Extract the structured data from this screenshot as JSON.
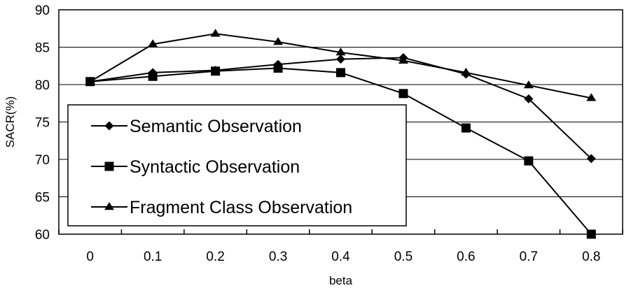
{
  "chart_data": {
    "type": "line",
    "title": "",
    "xlabel": "beta",
    "ylabel": "SACR(%)",
    "x": [
      "0",
      "0.1",
      "0.2",
      "0.3",
      "0.4",
      "0.5",
      "0.6",
      "0.7",
      "0.8"
    ],
    "yticks": [
      "60",
      "65",
      "70",
      "75",
      "80",
      "85",
      "90"
    ],
    "ylim": [
      60,
      90
    ],
    "grid": true,
    "legend_position": "lower-left inside plot",
    "series": [
      {
        "name": "Semantic Observation",
        "marker": "diamond",
        "values": [
          80.4,
          81.6,
          81.9,
          82.7,
          83.4,
          83.6,
          81.4,
          78.1,
          70.1
        ]
      },
      {
        "name": "Syntactic Observation",
        "marker": "square",
        "values": [
          80.4,
          81.1,
          81.8,
          82.2,
          81.6,
          78.8,
          74.2,
          69.8,
          60.0
        ]
      },
      {
        "name": "Fragment Class Observation",
        "marker": "triangle",
        "values": [
          80.4,
          85.4,
          86.8,
          85.7,
          84.3,
          83.2,
          81.6,
          79.9,
          78.2
        ]
      }
    ],
    "colors": {
      "line": "#000000",
      "grid": "#000000",
      "background": "#ffffff"
    }
  }
}
